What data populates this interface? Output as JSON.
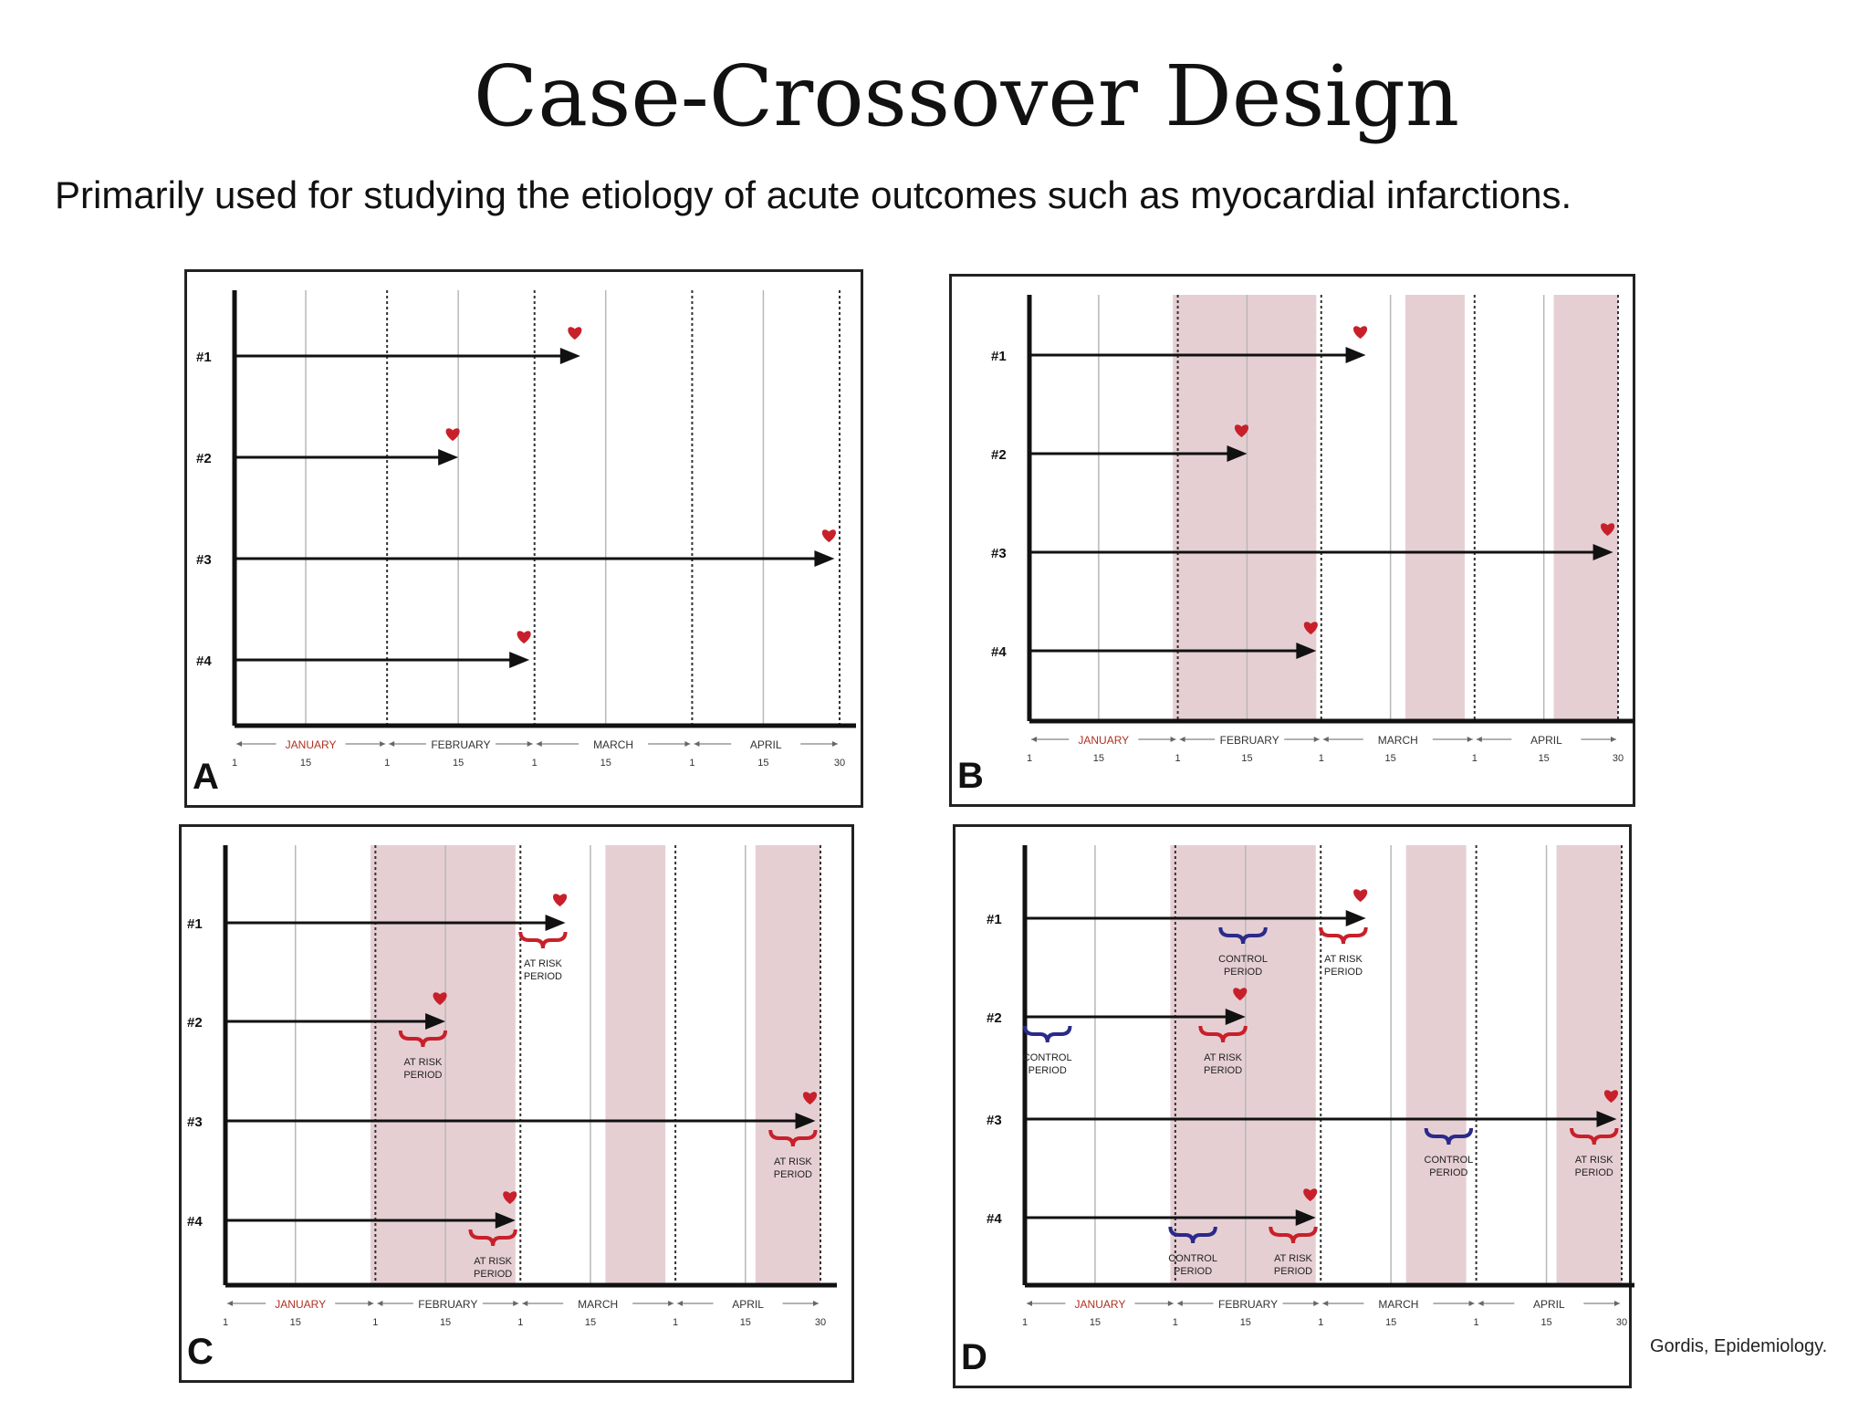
{
  "title": "Case-Crossover Design",
  "subtitle": "Primarily used for studying the etiology of acute outcomes such as myocardial infarctions.",
  "credit": "Gordis, Epidemiology.",
  "month_labels": [
    "JANUARY",
    "FEBRUARY",
    "MARCH",
    "APRIL"
  ],
  "day_ticks": [
    "1",
    "15",
    "1",
    "15",
    "1",
    "15",
    "1",
    "15",
    "30"
  ],
  "subjects": [
    "#1",
    "#2",
    "#3",
    "#4"
  ],
  "event_days": [
    69,
    45,
    119,
    59
  ],
  "colors": {
    "shade": "#e6cfd3",
    "event": "#c8202a",
    "at_risk": "#c8202a",
    "control": "#2a2a8a",
    "month": "#b03020",
    "axis": "#111111"
  },
  "panels": [
    {
      "letter": "A",
      "shaded_periods": [],
      "brackets": []
    },
    {
      "letter": "B",
      "shaded_periods": [
        [
          30,
          59
        ],
        [
          77,
          89
        ],
        [
          107,
          120
        ]
      ],
      "brackets": []
    },
    {
      "letter": "C",
      "shaded_periods": [
        [
          30,
          59
        ],
        [
          77,
          89
        ],
        [
          107,
          120
        ]
      ],
      "brackets": [
        {
          "subject": 0,
          "kind": "at_risk",
          "label1": "AT RISK",
          "label2": "PERIOD"
        },
        {
          "subject": 1,
          "kind": "at_risk",
          "label1": "AT RISK",
          "label2": "PERIOD"
        },
        {
          "subject": 2,
          "kind": "at_risk",
          "label1": "AT RISK",
          "label2": "PERIOD"
        },
        {
          "subject": 3,
          "kind": "at_risk",
          "label1": "AT RISK",
          "label2": "PERIOD"
        }
      ]
    },
    {
      "letter": "D",
      "shaded_periods": [
        [
          30,
          59
        ],
        [
          77,
          89
        ],
        [
          107,
          120
        ]
      ],
      "brackets": [
        {
          "subject": 0,
          "kind": "control",
          "label1": "CONTROL",
          "label2": "PERIOD"
        },
        {
          "subject": 0,
          "kind": "at_risk",
          "label1": "AT RISK",
          "label2": "PERIOD"
        },
        {
          "subject": 1,
          "kind": "control",
          "label1": "CONTROL",
          "label2": "PERIOD"
        },
        {
          "subject": 1,
          "kind": "at_risk",
          "label1": "AT RISK",
          "label2": "PERIOD"
        },
        {
          "subject": 2,
          "kind": "control",
          "label1": "CONTROL",
          "label2": "PERIOD"
        },
        {
          "subject": 2,
          "kind": "at_risk",
          "label1": "AT RISK",
          "label2": "PERIOD"
        },
        {
          "subject": 3,
          "kind": "control",
          "label1": "CONTROL",
          "label2": "PERIOD"
        },
        {
          "subject": 3,
          "kind": "at_risk",
          "label1": "AT RISK",
          "label2": "PERIOD"
        }
      ]
    }
  ]
}
